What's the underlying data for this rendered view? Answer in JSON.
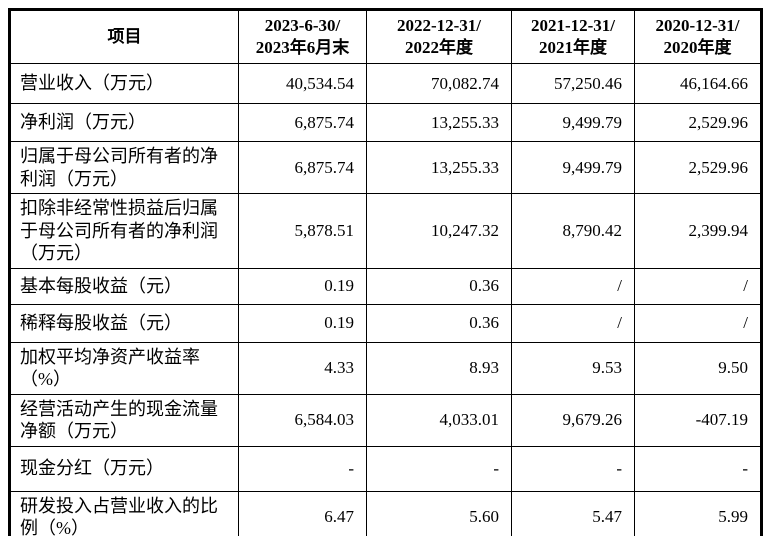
{
  "colors": {
    "text": "#000000",
    "border": "#000000",
    "background": "#ffffff"
  },
  "table": {
    "header": {
      "item_label": "项目",
      "columns": [
        {
          "line1": "2023-6-30/",
          "line2": "2023年6月末"
        },
        {
          "line1": "2022-12-31/",
          "line2": "2022年度"
        },
        {
          "line1": "2021-12-31/",
          "line2": "2021年度"
        },
        {
          "line1": "2020-12-31/",
          "line2": "2020年度"
        }
      ]
    },
    "rows": [
      {
        "label": "营业收入（万元）",
        "values": [
          "40,534.54",
          "70,082.74",
          "57,250.46",
          "46,164.66"
        ]
      },
      {
        "label": "净利润（万元）",
        "values": [
          "6,875.74",
          "13,255.33",
          "9,499.79",
          "2,529.96"
        ]
      },
      {
        "label": "归属于母公司所有者的净利润（万元）",
        "values": [
          "6,875.74",
          "13,255.33",
          "9,499.79",
          "2,529.96"
        ]
      },
      {
        "label": "扣除非经常性损益后归属于母公司所有者的净利润（万元）",
        "values": [
          "5,878.51",
          "10,247.32",
          "8,790.42",
          "2,399.94"
        ]
      },
      {
        "label": "基本每股收益（元）",
        "values": [
          "0.19",
          "0.36",
          "/",
          "/"
        ]
      },
      {
        "label": "稀释每股收益（元）",
        "values": [
          "0.19",
          "0.36",
          "/",
          "/"
        ]
      },
      {
        "label": "加权平均净资产收益率（%）",
        "values": [
          "4.33",
          "8.93",
          "9.53",
          "9.50"
        ]
      },
      {
        "label": "经营活动产生的现金流量净额（万元）",
        "values": [
          "6,584.03",
          "4,033.01",
          "9,679.26",
          "-407.19"
        ]
      },
      {
        "label": "现金分红（万元）",
        "values": [
          "-",
          "-",
          "-",
          "-"
        ]
      },
      {
        "label": "研发投入占营业收入的比例（%）",
        "values": [
          "6.47",
          "5.60",
          "5.47",
          "5.99"
        ]
      }
    ]
  }
}
